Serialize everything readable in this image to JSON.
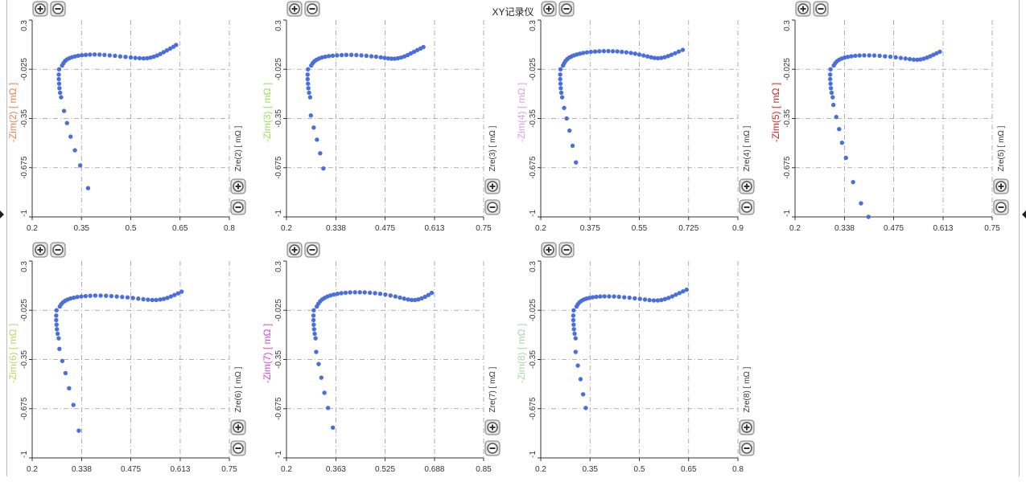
{
  "window": {
    "title": "XY记录仪"
  },
  "colors": {
    "point": "#4a6fdc",
    "grid": "#9a9a9a",
    "axis": "#333333",
    "button_fill": "#e4e4e4",
    "button_stroke": "#777777"
  },
  "icons": {
    "zoom_in": "plus-circle-icon",
    "zoom_out": "minus-circle-icon"
  },
  "chart_data": [
    {
      "type": "scatter",
      "xlabel": "Zre(2) [ mΩ ]",
      "ylabel": "-Zim(2) [ mΩ ]",
      "ylabel_color": "#e8804a",
      "xlim": [
        0.2,
        0.8
      ],
      "xticks": [
        0.2,
        0.35,
        0.5,
        0.65,
        0.8
      ],
      "xtick_labels": [
        "0.2",
        "0.35",
        "0.5",
        "0.65",
        "0.8"
      ],
      "ylim": [
        -1,
        0.3
      ],
      "yticks": [
        -1,
        -0.675,
        -0.35,
        -0.025,
        0.3
      ],
      "ytick_labels": [
        "-1",
        "-0.675",
        "-0.35",
        "-0.025",
        "0.3"
      ],
      "grid": true,
      "x": [
        0.282,
        0.281,
        0.281,
        0.282,
        0.283,
        0.285,
        0.288,
        0.291,
        0.295,
        0.3,
        0.306,
        0.313,
        0.321,
        0.33,
        0.34,
        0.351,
        0.363,
        0.376,
        0.39,
        0.405,
        0.42,
        0.436,
        0.452,
        0.468,
        0.484,
        0.5,
        0.514,
        0.527,
        0.539,
        0.55,
        0.56,
        0.57,
        0.58,
        0.59,
        0.6,
        0.61,
        0.62,
        0.63,
        0.638,
        0.297,
        0.306,
        0.317,
        0.33,
        0.346,
        0.37
      ],
      "y": [
        -0.025,
        -0.06,
        -0.09,
        -0.12,
        -0.15,
        -0.18,
        -0.21,
        0.0,
        0.015,
        0.03,
        0.04,
        0.048,
        0.055,
        0.06,
        0.065,
        0.068,
        0.07,
        0.072,
        0.073,
        0.072,
        0.07,
        0.067,
        0.064,
        0.06,
        0.057,
        0.053,
        0.05,
        0.048,
        0.047,
        0.048,
        0.052,
        0.058,
        0.066,
        0.076,
        0.088,
        0.1,
        0.112,
        0.124,
        0.136,
        -0.3,
        -0.38,
        -0.47,
        -0.56,
        -0.66,
        -0.81
      ]
    },
    {
      "type": "scatter",
      "xlabel": "Zre(3) [ mΩ ]",
      "ylabel": "-Zim(3) [ mΩ ]",
      "ylabel_color": "#9adf5a",
      "xlim": [
        0.2,
        0.75
      ],
      "xticks": [
        0.2,
        0.338,
        0.475,
        0.613,
        0.75
      ],
      "xtick_labels": [
        "0.2",
        "0.338",
        "0.475",
        "0.613",
        "0.75"
      ],
      "ylim": [
        -1,
        0.3
      ],
      "yticks": [
        -1,
        -0.675,
        -0.35,
        -0.025,
        0.3
      ],
      "ytick_labels": [
        "-1",
        "-0.675",
        "-0.35",
        "-0.025",
        "0.3"
      ],
      "grid": true,
      "x": [
        0.26,
        0.259,
        0.259,
        0.26,
        0.261,
        0.263,
        0.266,
        0.269,
        0.273,
        0.278,
        0.284,
        0.291,
        0.299,
        0.308,
        0.318,
        0.329,
        0.341,
        0.354,
        0.367,
        0.381,
        0.395,
        0.409,
        0.423,
        0.437,
        0.45,
        0.463,
        0.474,
        0.484,
        0.493,
        0.502,
        0.511,
        0.52,
        0.529,
        0.538,
        0.547,
        0.556,
        0.565,
        0.574,
        0.582,
        0.268,
        0.276,
        0.285,
        0.294,
        0.303
      ],
      "y": [
        -0.025,
        -0.06,
        -0.09,
        -0.12,
        -0.15,
        -0.18,
        -0.21,
        0.0,
        0.015,
        0.028,
        0.038,
        0.046,
        0.053,
        0.058,
        0.062,
        0.065,
        0.067,
        0.069,
        0.07,
        0.07,
        0.069,
        0.067,
        0.064,
        0.061,
        0.058,
        0.054,
        0.05,
        0.047,
        0.045,
        0.045,
        0.048,
        0.053,
        0.06,
        0.069,
        0.08,
        0.091,
        0.102,
        0.112,
        0.122,
        -0.33,
        -0.41,
        -0.49,
        -0.58,
        -0.68
      ]
    },
    {
      "type": "scatter",
      "xlabel": "Zre(4) [ mΩ ]",
      "ylabel": "-Zim(4) [ mΩ ]",
      "ylabel_color": "#d8a0e8",
      "xlim": [
        0.2,
        0.9
      ],
      "xticks": [
        0.2,
        0.375,
        0.55,
        0.725,
        0.9
      ],
      "xtick_labels": [
        "0.2",
        "0.375",
        "0.55",
        "0.725",
        "0.9"
      ],
      "ylim": [
        -1,
        0.3
      ],
      "yticks": [
        -1,
        -0.675,
        -0.35,
        -0.025,
        0.3
      ],
      "ytick_labels": [
        "-1",
        "-0.675",
        "-0.35",
        "-0.025",
        "0.3"
      ],
      "grid": true,
      "x": [
        0.27,
        0.269,
        0.269,
        0.27,
        0.271,
        0.273,
        0.276,
        0.279,
        0.283,
        0.288,
        0.294,
        0.301,
        0.309,
        0.318,
        0.328,
        0.339,
        0.351,
        0.364,
        0.378,
        0.393,
        0.408,
        0.424,
        0.44,
        0.456,
        0.472,
        0.488,
        0.504,
        0.52,
        0.535,
        0.55,
        0.565,
        0.579,
        0.592,
        0.604,
        0.616,
        0.628,
        0.64,
        0.652,
        0.664,
        0.677,
        0.69,
        0.704,
        0.283,
        0.292,
        0.302,
        0.313,
        0.325
      ],
      "y": [
        -0.025,
        -0.06,
        -0.09,
        -0.12,
        -0.15,
        -0.18,
        -0.21,
        0.0,
        0.015,
        0.03,
        0.042,
        0.052,
        0.06,
        0.067,
        0.073,
        0.078,
        0.083,
        0.087,
        0.09,
        0.092,
        0.094,
        0.095,
        0.095,
        0.094,
        0.093,
        0.09,
        0.087,
        0.083,
        0.078,
        0.072,
        0.066,
        0.06,
        0.054,
        0.05,
        0.048,
        0.05,
        0.055,
        0.062,
        0.071,
        0.081,
        0.092,
        0.103,
        -0.28,
        -0.35,
        -0.43,
        -0.53,
        -0.64
      ]
    },
    {
      "type": "scatter",
      "xlabel": "Zre(5) [ mΩ ]",
      "ylabel": "-Zim(5) [ mΩ ]",
      "ylabel_color": "#dd2020",
      "xlim": [
        0.2,
        0.75
      ],
      "xticks": [
        0.2,
        0.338,
        0.475,
        0.613,
        0.75
      ],
      "xtick_labels": [
        "0.2",
        "0.338",
        "0.475",
        "0.613",
        "0.75"
      ],
      "ylim": [
        -1,
        0.3
      ],
      "yticks": [
        -1,
        -0.675,
        -0.35,
        -0.025,
        0.3
      ],
      "ytick_labels": [
        "-1",
        "-0.675",
        "-0.35",
        "-0.025",
        "0.3"
      ],
      "grid": true,
      "x": [
        0.299,
        0.298,
        0.298,
        0.299,
        0.3,
        0.302,
        0.305,
        0.308,
        0.312,
        0.317,
        0.323,
        0.33,
        0.338,
        0.347,
        0.357,
        0.368,
        0.38,
        0.393,
        0.407,
        0.421,
        0.436,
        0.451,
        0.466,
        0.481,
        0.495,
        0.508,
        0.52,
        0.531,
        0.541,
        0.55,
        0.559,
        0.568,
        0.577,
        0.586,
        0.595,
        0.604,
        0.307,
        0.315,
        0.323,
        0.331,
        0.342,
        0.362,
        0.384,
        0.405
      ],
      "y": [
        -0.025,
        -0.06,
        -0.09,
        -0.12,
        -0.15,
        -0.18,
        -0.21,
        0.0,
        0.015,
        0.028,
        0.038,
        0.046,
        0.052,
        0.057,
        0.061,
        0.064,
        0.066,
        0.067,
        0.067,
        0.066,
        0.064,
        0.061,
        0.058,
        0.054,
        0.05,
        0.046,
        0.042,
        0.039,
        0.038,
        0.04,
        0.045,
        0.052,
        0.061,
        0.071,
        0.081,
        0.091,
        -0.26,
        -0.34,
        -0.42,
        -0.51,
        -0.61,
        -0.77,
        -0.91,
        -1.0
      ]
    },
    {
      "type": "scatter",
      "xlabel": "Zre(6) [ mΩ ]",
      "ylabel": "-Zim(6) [ mΩ ]",
      "ylabel_color": "#b8d860",
      "xlim": [
        0.2,
        0.75
      ],
      "xticks": [
        0.2,
        0.338,
        0.475,
        0.613,
        0.75
      ],
      "xtick_labels": [
        "0.2",
        "0.338",
        "0.475",
        "0.613",
        "0.75"
      ],
      "ylim": [
        -1,
        0.3
      ],
      "yticks": [
        -1,
        -0.675,
        -0.35,
        -0.025,
        0.3
      ],
      "ytick_labels": [
        "-1",
        "-0.675",
        "-0.35",
        "-0.025",
        "0.3"
      ],
      "grid": true,
      "x": [
        0.268,
        0.267,
        0.267,
        0.268,
        0.269,
        0.271,
        0.274,
        0.277,
        0.281,
        0.286,
        0.292,
        0.299,
        0.307,
        0.316,
        0.326,
        0.337,
        0.349,
        0.362,
        0.376,
        0.391,
        0.406,
        0.421,
        0.436,
        0.451,
        0.466,
        0.481,
        0.496,
        0.51,
        0.523,
        0.535,
        0.546,
        0.557,
        0.567,
        0.577,
        0.587,
        0.597,
        0.607,
        0.617,
        0.276,
        0.284,
        0.293,
        0.303,
        0.315,
        0.33
      ],
      "y": [
        -0.025,
        -0.06,
        -0.09,
        -0.12,
        -0.15,
        -0.18,
        -0.21,
        0.0,
        0.015,
        0.028,
        0.038,
        0.046,
        0.053,
        0.058,
        0.063,
        0.066,
        0.069,
        0.071,
        0.072,
        0.072,
        0.071,
        0.069,
        0.066,
        0.063,
        0.06,
        0.056,
        0.052,
        0.048,
        0.045,
        0.043,
        0.043,
        0.046,
        0.05,
        0.057,
        0.066,
        0.076,
        0.087,
        0.098,
        -0.28,
        -0.36,
        -0.44,
        -0.54,
        -0.65,
        -0.82
      ]
    },
    {
      "type": "scatter",
      "xlabel": "Zre(7) [ mΩ ]",
      "ylabel": "-Zim(7) [ mΩ ]",
      "ylabel_color": "#e040e0",
      "xlim": [
        0.2,
        0.85
      ],
      "xticks": [
        0.2,
        0.363,
        0.525,
        0.688,
        0.85
      ],
      "xtick_labels": [
        "0.2",
        "0.363",
        "0.525",
        "0.688",
        "0.85"
      ],
      "ylim": [
        -1,
        0.3
      ],
      "yticks": [
        -1,
        -0.675,
        -0.35,
        -0.025,
        0.3
      ],
      "ytick_labels": [
        "-1",
        "-0.675",
        "-0.35",
        "-0.025",
        "0.3"
      ],
      "grid": true,
      "x": [
        0.29,
        0.289,
        0.289,
        0.29,
        0.291,
        0.293,
        0.296,
        0.3,
        0.305,
        0.311,
        0.318,
        0.326,
        0.335,
        0.345,
        0.356,
        0.368,
        0.381,
        0.395,
        0.41,
        0.426,
        0.442,
        0.458,
        0.475,
        0.492,
        0.509,
        0.526,
        0.543,
        0.559,
        0.574,
        0.588,
        0.601,
        0.613,
        0.624,
        0.635,
        0.646,
        0.657,
        0.668,
        0.679,
        0.298,
        0.306,
        0.315,
        0.325,
        0.337,
        0.353
      ],
      "y": [
        -0.025,
        -0.06,
        -0.09,
        -0.12,
        -0.15,
        -0.18,
        -0.21,
        0.0,
        0.018,
        0.034,
        0.047,
        0.057,
        0.066,
        0.073,
        0.079,
        0.084,
        0.088,
        0.091,
        0.093,
        0.094,
        0.094,
        0.093,
        0.091,
        0.088,
        0.084,
        0.079,
        0.073,
        0.066,
        0.059,
        0.052,
        0.046,
        0.043,
        0.043,
        0.047,
        0.054,
        0.064,
        0.076,
        0.09,
        -0.3,
        -0.38,
        -0.47,
        -0.57,
        -0.67,
        -0.8
      ]
    },
    {
      "type": "scatter",
      "xlabel": "Zre(8) [ mΩ ]",
      "ylabel": "-Zim(8) [ mΩ ]",
      "ylabel_color": "#a8d8a8",
      "xlim": [
        0.2,
        0.8
      ],
      "xticks": [
        0.2,
        0.35,
        0.5,
        0.65,
        0.8
      ],
      "xtick_labels": [
        "0.2",
        "0.35",
        "0.5",
        "0.65",
        "0.8"
      ],
      "ylim": [
        -1,
        0.3
      ],
      "yticks": [
        -1,
        -0.675,
        -0.35,
        -0.025,
        0.3
      ],
      "ytick_labels": [
        "-1",
        "-0.675",
        "-0.35",
        "-0.025",
        "0.3"
      ],
      "grid": true,
      "x": [
        0.3,
        0.299,
        0.299,
        0.3,
        0.301,
        0.303,
        0.306,
        0.309,
        0.313,
        0.318,
        0.324,
        0.331,
        0.339,
        0.348,
        0.358,
        0.369,
        0.381,
        0.394,
        0.408,
        0.423,
        0.438,
        0.454,
        0.47,
        0.486,
        0.502,
        0.517,
        0.531,
        0.544,
        0.556,
        0.567,
        0.578,
        0.589,
        0.6,
        0.611,
        0.622,
        0.633,
        0.644,
        0.306,
        0.313,
        0.321,
        0.329,
        0.337
      ],
      "y": [
        -0.025,
        -0.06,
        -0.09,
        -0.12,
        -0.15,
        -0.18,
        -0.21,
        0.0,
        0.015,
        0.028,
        0.038,
        0.046,
        0.052,
        0.057,
        0.061,
        0.064,
        0.066,
        0.067,
        0.067,
        0.066,
        0.064,
        0.061,
        0.058,
        0.054,
        0.05,
        0.046,
        0.042,
        0.04,
        0.04,
        0.043,
        0.049,
        0.057,
        0.067,
        0.078,
        0.089,
        0.1,
        0.111,
        -0.3,
        -0.39,
        -0.48,
        -0.58,
        -0.67
      ]
    }
  ]
}
